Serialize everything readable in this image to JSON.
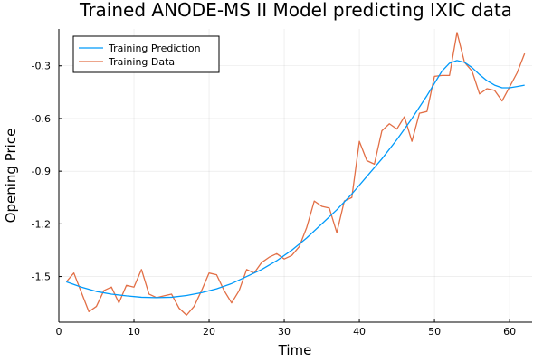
{
  "chart_data": {
    "type": "line",
    "title": "Trained ANODE-MS II Model predicting IXIC data",
    "xlabel": "Time",
    "ylabel": "Opening Price",
    "xlim": [
      0,
      63
    ],
    "ylim": [
      -1.76,
      -0.09
    ],
    "xticks": [
      0,
      10,
      20,
      30,
      40,
      50,
      60
    ],
    "xtick_labels": [
      "0",
      "10",
      "20",
      "30",
      "40",
      "50",
      "60"
    ],
    "yticks": [
      -1.5,
      -1.2,
      -0.9,
      -0.6,
      -0.3
    ],
    "ytick_labels": [
      "-1.5",
      "-1.2",
      "-0.9",
      "-0.6",
      "-0.3"
    ],
    "grid": true,
    "legend_position": "top-left",
    "series": [
      {
        "name": "Training Prediction",
        "color": "#009AFA",
        "x": [
          1,
          3,
          5,
          7,
          9,
          11,
          13,
          15,
          17,
          19,
          21,
          23,
          25,
          27,
          29,
          31,
          33,
          35,
          37,
          39,
          41,
          43,
          45,
          47,
          49,
          50,
          51,
          52,
          53,
          54,
          55,
          56,
          57,
          58,
          59,
          60,
          61,
          62
        ],
        "values": [
          -1.53,
          -1.56,
          -1.585,
          -1.6,
          -1.61,
          -1.618,
          -1.62,
          -1.618,
          -1.608,
          -1.592,
          -1.57,
          -1.54,
          -1.5,
          -1.46,
          -1.41,
          -1.35,
          -1.28,
          -1.2,
          -1.12,
          -1.03,
          -0.93,
          -0.83,
          -0.72,
          -0.6,
          -0.47,
          -0.4,
          -0.33,
          -0.285,
          -0.27,
          -0.28,
          -0.31,
          -0.35,
          -0.385,
          -0.41,
          -0.425,
          -0.425,
          -0.418,
          -0.41
        ]
      },
      {
        "name": "Training Data",
        "color": "#E26F46",
        "x": [
          1,
          2,
          3,
          4,
          5,
          6,
          7,
          8,
          9,
          10,
          11,
          12,
          13,
          14,
          15,
          16,
          17,
          18,
          19,
          20,
          21,
          22,
          23,
          24,
          25,
          26,
          27,
          28,
          29,
          30,
          31,
          32,
          33,
          34,
          35,
          36,
          37,
          38,
          39,
          40,
          41,
          42,
          43,
          44,
          45,
          46,
          47,
          48,
          49,
          50,
          51,
          52,
          53,
          54,
          55,
          56,
          57,
          58,
          59,
          60,
          61,
          62
        ],
        "values": [
          -1.53,
          -1.48,
          -1.59,
          -1.7,
          -1.67,
          -1.58,
          -1.56,
          -1.65,
          -1.55,
          -1.56,
          -1.46,
          -1.6,
          -1.62,
          -1.61,
          -1.6,
          -1.68,
          -1.72,
          -1.67,
          -1.58,
          -1.48,
          -1.49,
          -1.58,
          -1.65,
          -1.58,
          -1.46,
          -1.48,
          -1.42,
          -1.39,
          -1.37,
          -1.4,
          -1.38,
          -1.33,
          -1.22,
          -1.07,
          -1.1,
          -1.11,
          -1.25,
          -1.07,
          -1.05,
          -0.73,
          -0.84,
          -0.86,
          -0.67,
          -0.63,
          -0.66,
          -0.59,
          -0.73,
          -0.57,
          -0.56,
          -0.36,
          -0.355,
          -0.355,
          -0.11,
          -0.28,
          -0.33,
          -0.46,
          -0.43,
          -0.44,
          -0.5,
          -0.42,
          -0.34,
          -0.23
        ]
      }
    ]
  }
}
